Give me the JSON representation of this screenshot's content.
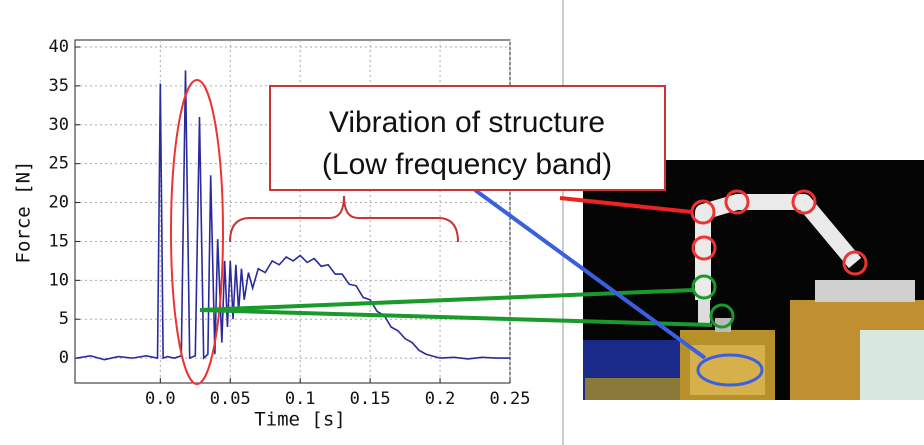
{
  "chart_data": {
    "type": "line",
    "x_label": "Time [s]",
    "y_label": "Force [N]",
    "annotation": [
      "Vibration of structure",
      "(Low frequency band)"
    ],
    "xlim": [
      -0.061,
      0.25
    ],
    "ylim": [
      -3.2,
      40.9
    ],
    "xticks": [
      {
        "value": 0,
        "label": "0.0"
      },
      0.05,
      0.1,
      0.15,
      0.2,
      0.25
    ],
    "yticks": [
      0,
      5,
      10,
      15,
      20,
      25,
      30,
      35,
      40
    ],
    "grid": true,
    "series": [
      {
        "color": "#2a2a9c",
        "x": [
          -0.06,
          -0.05,
          -0.04,
          -0.03,
          -0.02,
          -0.01,
          -0.002,
          0.0,
          0.002,
          0.005,
          0.01,
          0.015,
          0.018,
          0.021,
          0.025,
          0.028,
          0.031,
          0.034,
          0.036,
          0.039,
          0.041,
          0.044,
          0.046,
          0.048,
          0.05,
          0.052,
          0.054,
          0.056,
          0.058,
          0.06,
          0.063,
          0.066,
          0.07,
          0.075,
          0.08,
          0.085,
          0.09,
          0.095,
          0.1,
          0.105,
          0.11,
          0.115,
          0.12,
          0.125,
          0.13,
          0.135,
          0.14,
          0.145,
          0.15,
          0.155,
          0.16,
          0.165,
          0.17,
          0.175,
          0.18,
          0.185,
          0.19,
          0.2,
          0.21,
          0.22,
          0.23,
          0.24,
          0.25
        ],
        "values": [
          0,
          0.3,
          -0.2,
          0.2,
          0,
          0.3,
          0,
          35.3,
          0,
          0.2,
          0,
          0.3,
          37,
          0,
          0.3,
          31,
          0,
          0.5,
          23.5,
          0.5,
          15.3,
          2,
          12.5,
          4,
          12.5,
          5,
          12,
          6,
          11.5,
          7.5,
          11,
          9,
          11.5,
          11,
          12.5,
          12,
          13,
          12.5,
          13.2,
          12.3,
          12.8,
          11.8,
          12,
          10.8,
          10.8,
          9.5,
          9.3,
          7.8,
          7.5,
          6,
          5.5,
          4,
          3.5,
          2.5,
          2,
          1,
          0.5,
          0,
          0.1,
          -0.1,
          0.1,
          0,
          0
        ]
      }
    ]
  }
}
